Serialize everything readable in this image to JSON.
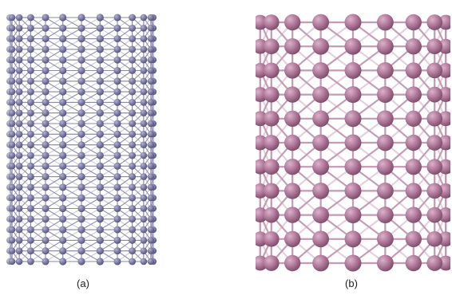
{
  "figure": {
    "panels": [
      {
        "id": "a",
        "label": "(a)",
        "atom_color": "#7c7ba3",
        "atom_highlight": "#b3b2d1",
        "atom_shadow": "#55547a",
        "bond_color": "#8988ab",
        "rows": 24,
        "columns": 12
      },
      {
        "id": "b",
        "label": "(b)",
        "atom_color": "#b0789a",
        "atom_highlight": "#dcb2cb",
        "atom_shadow": "#7d4f6b",
        "bond_color": "#c398b3",
        "rows": 11,
        "columns": 9
      }
    ]
  }
}
